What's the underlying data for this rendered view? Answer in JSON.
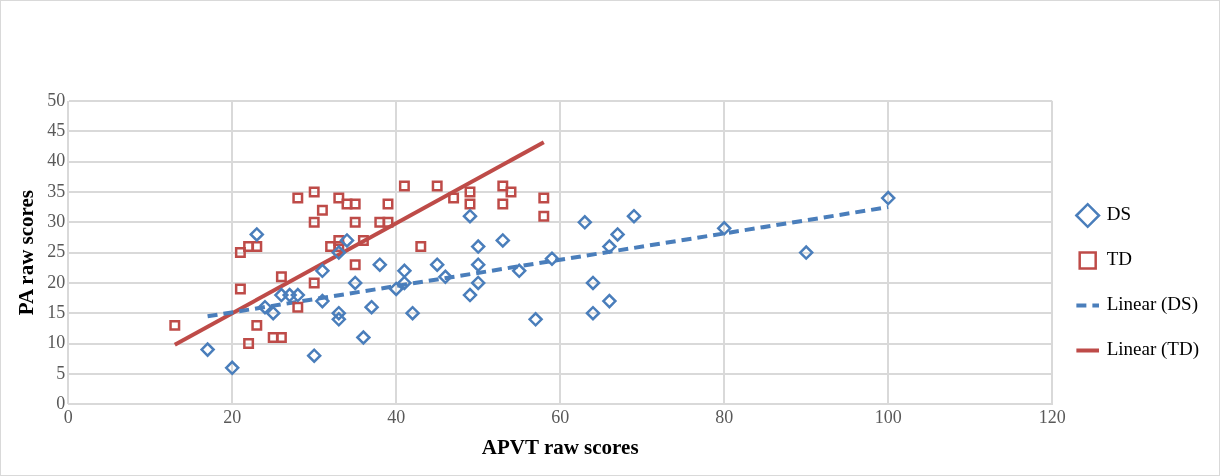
{
  "chart_data": {
    "type": "scatter",
    "xlabel": "APVT raw scores",
    "ylabel": "PA raw scores",
    "xlim": [
      0,
      120
    ],
    "xticks": [
      0,
      20,
      40,
      60,
      80,
      100,
      120
    ],
    "ylim": [
      0,
      50
    ],
    "yticks": [
      0,
      5,
      10,
      15,
      20,
      25,
      30,
      35,
      40,
      45,
      50
    ],
    "grid": true,
    "legend": "right",
    "series": [
      {
        "name": "DS",
        "type": "scatter",
        "marker": "diamond",
        "color": "#4a7ebb",
        "x": [
          17,
          20,
          23,
          24,
          25,
          26,
          27,
          28,
          30,
          31,
          31,
          33,
          33,
          33,
          34,
          35,
          36,
          37,
          38,
          40,
          41,
          41,
          42,
          45,
          46,
          49,
          49,
          50,
          50,
          50,
          53,
          55,
          57,
          59,
          63,
          64,
          64,
          66,
          66,
          67,
          69,
          80,
          90,
          100
        ],
        "values": [
          9,
          6,
          28,
          16,
          15,
          18,
          18,
          18,
          8,
          17,
          22,
          15,
          14,
          25,
          27,
          20,
          11,
          16,
          23,
          19,
          22,
          20,
          15,
          23,
          21,
          31,
          18,
          20,
          23,
          26,
          27,
          22,
          14,
          24,
          30,
          20,
          15,
          26,
          17,
          28,
          31,
          29,
          25,
          34
        ]
      },
      {
        "name": "TD",
        "type": "scatter",
        "marker": "square",
        "color": "#be4b48",
        "x": [
          13,
          21,
          21,
          22,
          22,
          23,
          23,
          25,
          26,
          26,
          28,
          28,
          30,
          30,
          30,
          31,
          32,
          33,
          33,
          33,
          34,
          35,
          35,
          35,
          36,
          38,
          39,
          39,
          41,
          43,
          45,
          47,
          49,
          49,
          53,
          53,
          54,
          58,
          58
        ],
        "values": [
          13,
          25,
          19,
          26,
          10,
          26,
          13,
          11,
          21,
          11,
          34,
          16,
          35,
          30,
          20,
          32,
          26,
          34,
          27,
          26,
          33,
          30,
          33,
          23,
          27,
          30,
          33,
          30,
          36,
          26,
          36,
          34,
          35,
          33,
          36,
          33,
          35,
          34,
          31
        ]
      },
      {
        "name": "Linear (DS)",
        "type": "line",
        "line_style": "dashed",
        "marker": "none",
        "color": "#4a7ebb",
        "x": [
          17,
          100
        ],
        "values": [
          14.5,
          32.5
        ]
      },
      {
        "name": "Linear (TD)",
        "type": "line",
        "line_style": "solid",
        "marker": "none",
        "color": "#be4b48",
        "x": [
          13,
          58
        ],
        "values": [
          9.8,
          43.2
        ]
      }
    ]
  }
}
